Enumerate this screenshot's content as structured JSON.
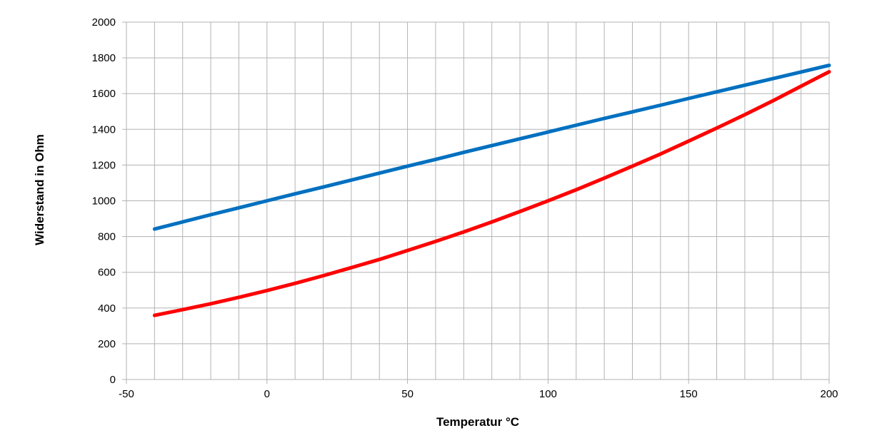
{
  "chart_data": {
    "type": "line",
    "title": "",
    "xlabel": "Temperatur   °C",
    "ylabel": "Widerstand in Ohm",
    "xlim": [
      -50,
      200
    ],
    "ylim": [
      0,
      2000
    ],
    "x_tick_labels": [
      "-50",
      "0",
      "50",
      "100",
      "150",
      "200"
    ],
    "y_tick_labels": [
      "0",
      "200",
      "400",
      "600",
      "800",
      "1000",
      "1200",
      "1400",
      "1600",
      "1800",
      "2000"
    ],
    "grid": true,
    "legend": "none",
    "series": [
      {
        "color": "#0070c0",
        "x": [
          -40,
          -30,
          -20,
          -10,
          0,
          10,
          20,
          30,
          40,
          50,
          60,
          70,
          80,
          90,
          100,
          110,
          120,
          130,
          140,
          150,
          160,
          170,
          180,
          190,
          200
        ],
        "y": [
          842,
          882,
          922,
          961,
          1000,
          1039,
          1077,
          1116,
          1155,
          1194,
          1232,
          1271,
          1309,
          1347,
          1385,
          1423,
          1461,
          1498,
          1535,
          1573,
          1610,
          1647,
          1684,
          1721,
          1758
        ]
      },
      {
        "color": "#ff0000",
        "x": [
          -40,
          -30,
          -20,
          -10,
          0,
          10,
          20,
          30,
          40,
          50,
          60,
          70,
          80,
          90,
          100,
          110,
          120,
          130,
          140,
          150,
          160,
          170,
          180,
          190,
          200
        ],
        "y": [
          359,
          391,
          424,
          460,
          498,
          538,
          581,
          626,
          672,
          722,
          773,
          826,
          882,
          940,
          1000,
          1062,
          1127,
          1194,
          1262,
          1334,
          1407,
          1482,
          1560,
          1641,
          1722
        ]
      }
    ]
  }
}
